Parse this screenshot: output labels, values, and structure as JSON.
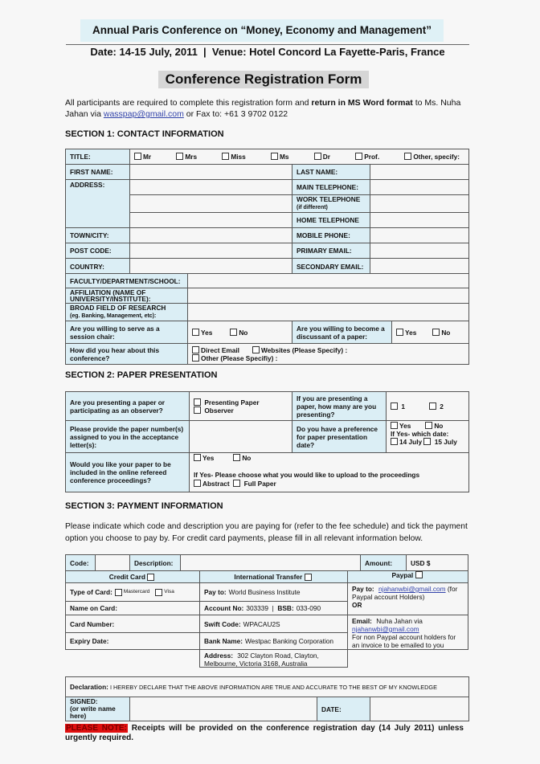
{
  "header": {
    "conference": "Annual Paris Conference on “Money, Economy and Management”",
    "date_venue": "Date: 14-15 July, 2011  |  Venue: Hotel Concord La Fayette-Paris, France",
    "form_title": "Conference Registration Form"
  },
  "intro": {
    "text1": "All participants are required to complete this registration form and ",
    "bold": "return in MS Word format",
    "text2": " to Ms. Nuha Jahan via ",
    "email": "wasspap@gmail.com",
    "text3": " or Fax to: +61 3 9702 0122"
  },
  "section1": {
    "heading": "SECTION 1: CONTACT INFORMATION",
    "title_label": "TITLE:",
    "title_options": [
      "Mr",
      "Mrs",
      "Miss",
      "Ms",
      "Dr",
      "Prof.",
      "Other, specify:"
    ],
    "first_name": "FIRST NAME:",
    "last_name": "LAST NAME:",
    "address": "ADDRESS:",
    "main_tel": "MAIN TELEPHONE:",
    "work_tel": "WORK TELEPHONE",
    "work_tel_note": "(if different)",
    "home_tel": "HOME TELEPHONE",
    "town": "TOWN/CITY:",
    "mobile": "MOBILE PHONE:",
    "post_code": "POST CODE:",
    "primary_email": "PRIMARY EMAIL:",
    "country": "COUNTRY:",
    "secondary_email": "SECONDARY EMAIL:",
    "faculty": "FACULTY/DEPARTMENT/SCHOOL:",
    "affiliation": "AFFILIATION (NAME OF UNIVERSITY/INSTITUTE):",
    "field": "BROAD FIELD OF RESEARCH",
    "field_note": "(eg. Banking, Management, etc):",
    "session_chair": "Are you willing to serve as a session chair:",
    "discussant": "Are you willing to become a discussant of a paper:",
    "yes": "Yes",
    "no": "No",
    "hear": "How did you hear about this conference?",
    "hear_options": [
      "Direct Email",
      "Websites (Please Specify) :",
      "Other (Please Specifiy) :"
    ]
  },
  "section2": {
    "heading": "SECTION 2: PAPER PRESENTATION",
    "presenting_q": "Are you presenting a paper or participating as an observer?",
    "presenting_opts": [
      "Presenting Paper",
      "Observer"
    ],
    "how_many_q": "If you are presenting a paper, how many are you presenting?",
    "how_many_opts": [
      "1",
      "2"
    ],
    "paper_num_q": "Please provide the paper number(s) assigned to you in the acceptance letter(s):",
    "pref_q": "Do you have a preference for paper presentation date?",
    "pref_which": "If Yes- which date:",
    "pref_dates": [
      "14 July",
      "15 July"
    ],
    "proc_q": "Would you like your paper to be included in the online refereed conference proceedings?",
    "proc_choose": "If Yes- Please choose what you would like to upload to the proceedings",
    "proc_opts": [
      "Abstract",
      "Full Paper"
    ]
  },
  "section3": {
    "heading": "SECTION 3: PAYMENT INFORMATION",
    "para": "Please indicate which code and description you are paying for (refer to the fee schedule) and tick the payment option you choose to pay by. For credit card payments, please fill in all relevant information below.",
    "code": "Code:",
    "description": "Description:",
    "amount": "Amount:",
    "usd": "USD $",
    "credit_card": "Credit Card",
    "intl_transfer": "International Transfer",
    "paypal": "Paypal",
    "type_of_card": "Type of Card:",
    "card_types": [
      "Mastercard",
      "Visa"
    ],
    "name_on_card": "Name on Card:",
    "card_number": "Card Number:",
    "expiry": "Expiry Date:",
    "pay_to_label": "Pay to:",
    "pay_to": "World Business Institute",
    "account_label": "Account No:",
    "account": "303339",
    "bsb_label": "BSB:",
    "bsb": "033-090",
    "swift_label": "Swift Code:",
    "swift": "WPACAU2S",
    "bank_label": "Bank Name:",
    "bank": "Westpac Banking Corporation",
    "address_label": "Address:",
    "address": "302 Clayton Road, Clayton, Melbourne, Victoria 3168, Australia",
    "pp_pay_to_label": "Pay to:",
    "pp_email": "njahanwbi@gmail.com",
    "pp_pay_to_note": "(for Paypal account Holders)",
    "or": "OR",
    "pp_email_label": "Email:",
    "pp_email_text": "Nuha Jahan via",
    "pp_email2": "njahanwbi@gmail.com",
    "pp_note": "For non Paypal account holders for an invoice to be emailed to you"
  },
  "declaration": {
    "label": "Declaration:",
    "text": "I HEREBY DECLARE THAT THE ABOVE INFORMATION ARE TRUE AND ACCURATE TO THE BEST OF MY KNOWLEDGE",
    "signed": "SIGNED:",
    "signed_note": "(or write name here)",
    "date": "DATE:"
  },
  "note": {
    "label": "PLEASE NOTE:",
    "text": " Receipts will be provided on the conference registration day (14 July 2011) unless urgently required."
  },
  "colors": {
    "label_bg": "#dbeef5",
    "header_bg": "#dff1f6",
    "note_red": "#e01010"
  }
}
